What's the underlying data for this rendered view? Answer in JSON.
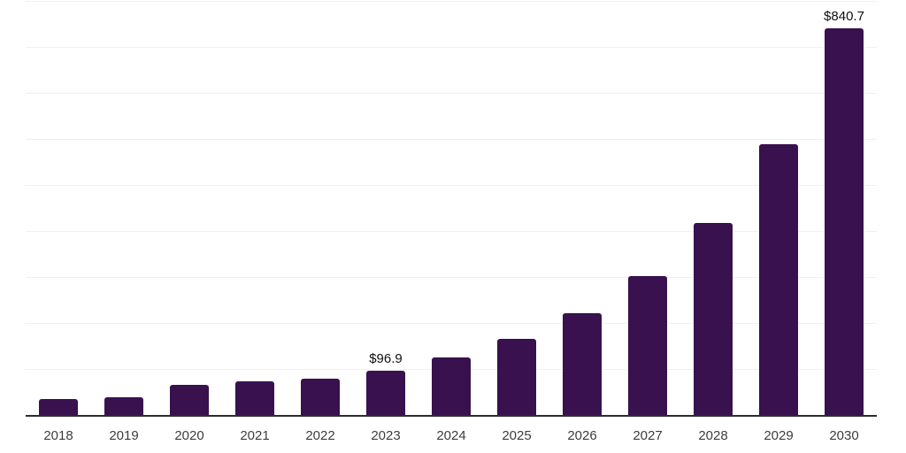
{
  "chart_data": {
    "type": "bar",
    "title": "",
    "categories": [
      "2018",
      "2019",
      "2020",
      "2021",
      "2022",
      "2023",
      "2024",
      "2025",
      "2026",
      "2027",
      "2028",
      "2029",
      "2030"
    ],
    "values": [
      34,
      39,
      65,
      73,
      78,
      96.9,
      125,
      165,
      221,
      302,
      417,
      589,
      840.7
    ],
    "data_labels": [
      null,
      null,
      null,
      null,
      null,
      "$96.9",
      null,
      null,
      null,
      null,
      null,
      null,
      "$840.7"
    ],
    "value_prefix": "$",
    "xlabel": "",
    "ylabel": "",
    "ylim": [
      0,
      900
    ],
    "gridline_step": 100,
    "grid": true,
    "legend": "none",
    "colors": {
      "bar": "#38114e",
      "axis_line": "#2d2d2d",
      "gridline": "#f0f0f0",
      "tick_label": "#3d3d3d",
      "data_label": "#0f0f0f",
      "background": "#ffffff"
    }
  }
}
